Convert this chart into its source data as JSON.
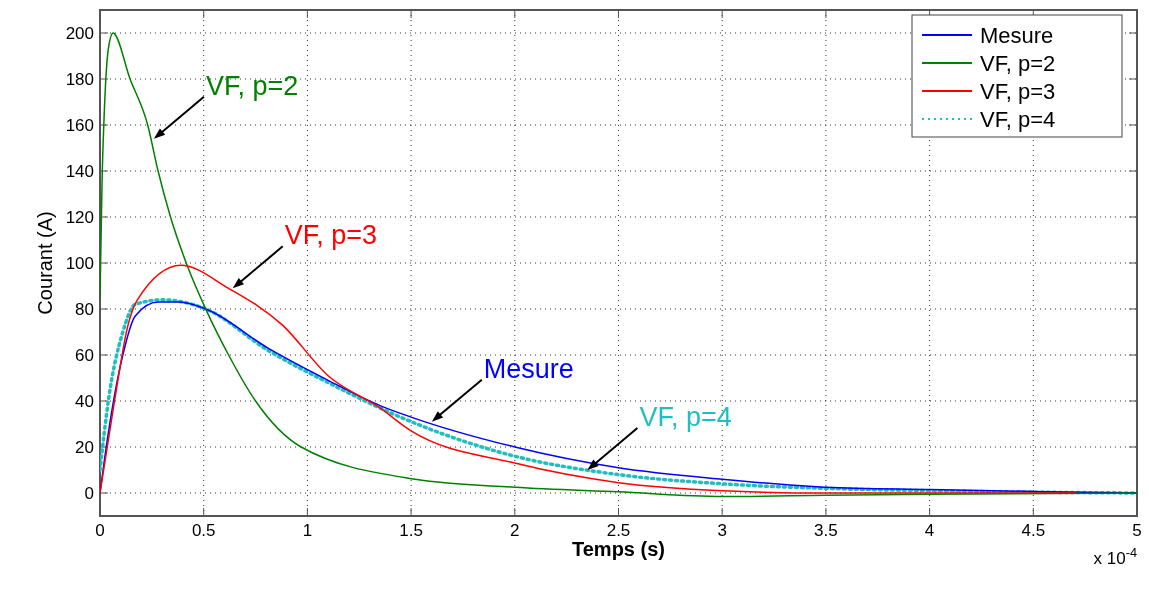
{
  "chart_data": {
    "type": "line",
    "xlabel": "Temps (s)",
    "ylabel": "Courant (A)",
    "xlim": [
      0,
      5
    ],
    "xticks": [
      0,
      0.5,
      1,
      1.5,
      2,
      2.5,
      3,
      3.5,
      4,
      4.5,
      5
    ],
    "ylim": [
      -10,
      210
    ],
    "yticks": [
      0,
      20,
      40,
      60,
      80,
      100,
      120,
      140,
      160,
      180,
      200
    ],
    "grid": true,
    "legend": "top right",
    "series": [
      {
        "name": "Mesure",
        "color": "#0000ff",
        "line_style": "solid",
        "x": [
          0,
          0.04,
          0.11,
          0.17,
          0.28,
          0.38,
          0.51,
          0.81,
          1.1,
          1.35,
          1.5,
          2,
          2.5,
          3,
          3.5,
          4,
          4.5,
          5
        ],
        "values": [
          0,
          26,
          60,
          77,
          83,
          83,
          80,
          63,
          49,
          38,
          33,
          20,
          11,
          6,
          2.5,
          1.5,
          0.7,
          0
        ]
      },
      {
        "name": "VF, p=2",
        "color": "#008000",
        "marker": "none",
        "line_style": "solid",
        "x": [
          0,
          0.01,
          0.02,
          0.04,
          0.063,
          0.145,
          0.23,
          0.28,
          0.34,
          0.42,
          0.52,
          0.62,
          0.75,
          0.97,
          1.52,
          2,
          2.5,
          3,
          3.5,
          4,
          5
        ],
        "values": [
          85,
          136,
          164,
          193,
          200,
          180,
          160,
          140,
          120,
          99,
          78,
          60,
          40,
          20,
          6,
          2.5,
          0.5,
          -1.5,
          -1,
          -0.5,
          0
        ]
      },
      {
        "name": "VF, p=3",
        "color": "#ff0000",
        "marker": "none",
        "line_style": "solid",
        "x": [
          0,
          0.07,
          0.135,
          0.18,
          0.39,
          0.62,
          0.88,
          1.1,
          1.35,
          1.5,
          2,
          2.5,
          3,
          3.5,
          4,
          4.7
        ],
        "values": [
          0,
          40,
          73,
          84,
          99,
          89,
          73,
          51,
          37,
          27,
          13,
          4.5,
          1,
          0,
          0,
          0
        ]
      },
      {
        "name": "VF, p=4",
        "color": "#1fbfbf",
        "line_style": "dotted",
        "x": [
          0,
          0.04,
          0.11,
          0.17,
          0.3,
          0.51,
          0.81,
          1.1,
          1.5,
          2,
          2.5,
          3,
          3.5,
          4,
          5
        ],
        "values": [
          10,
          40,
          70,
          82,
          84,
          80,
          62,
          48,
          31,
          16,
          8,
          4,
          2,
          1,
          0
        ]
      }
    ],
    "annotations": [
      {
        "text": "VF, p=2",
        "x": 0.26,
        "y": 154
      },
      {
        "text": "VF, p=3",
        "x": 0.64,
        "y": 89
      },
      {
        "text": "Mesure",
        "x": 1.6,
        "y": 31
      },
      {
        "text": "VF, p=4",
        "x": 2.35,
        "y": 10
      },
      "x 10$^{-4}$"
    ]
  }
}
